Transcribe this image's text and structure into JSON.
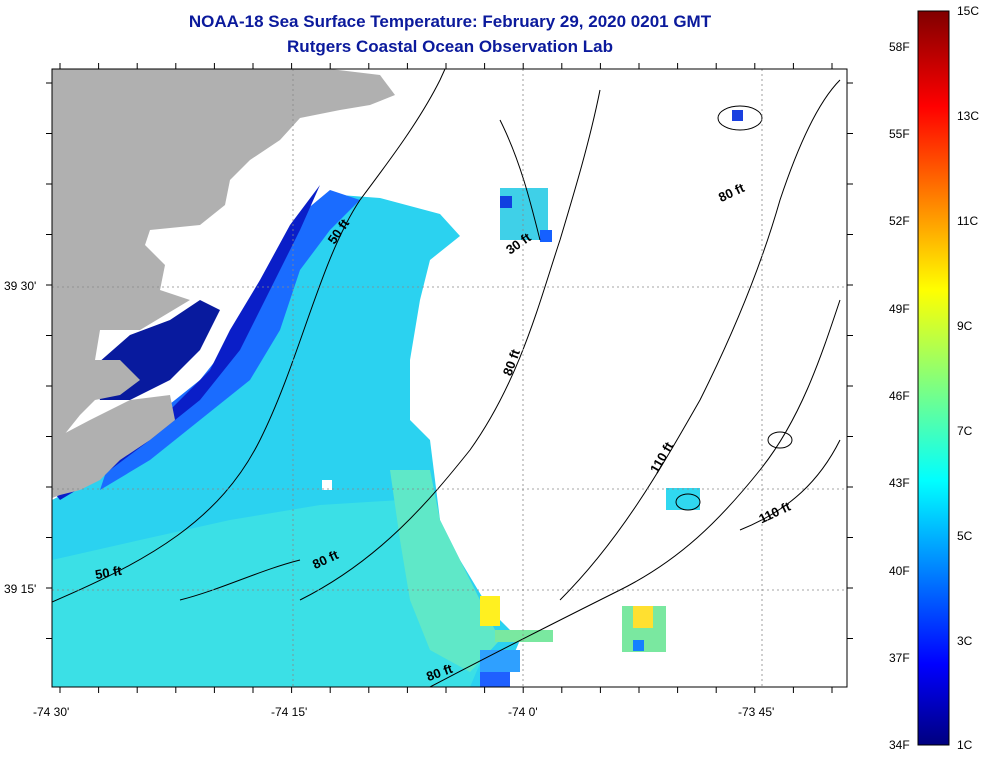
{
  "title": "NOAA-18 Sea Surface Temperature:  February 29, 2020 0201 GMT",
  "subtitle": "Rutgers Coastal Ocean Observation Lab",
  "x_ticks": [
    "-74 30'",
    "-74 15'",
    "-74 0'",
    "-73 45'"
  ],
  "y_ticks": [
    "39 30'",
    "39 15'"
  ],
  "contour_labels": [
    "50 ft",
    "30 ft",
    "80 ft",
    "80 ft",
    "110 ft",
    "110 ft",
    "50 ft",
    "80 ft",
    "80 ft"
  ],
  "colorbar": {
    "fahrenheit": [
      "58F",
      "55F",
      "52F",
      "49F",
      "46F",
      "43F",
      "40F",
      "37F",
      "34F"
    ],
    "celsius": [
      "15C",
      "13C",
      "11C",
      "9C",
      "7C",
      "5C",
      "3C",
      "1C"
    ]
  },
  "colors": {
    "land": "#b0b0b0",
    "title": "#0b1a9c",
    "sst_low": "#00007f",
    "sst_high": "#800000"
  }
}
